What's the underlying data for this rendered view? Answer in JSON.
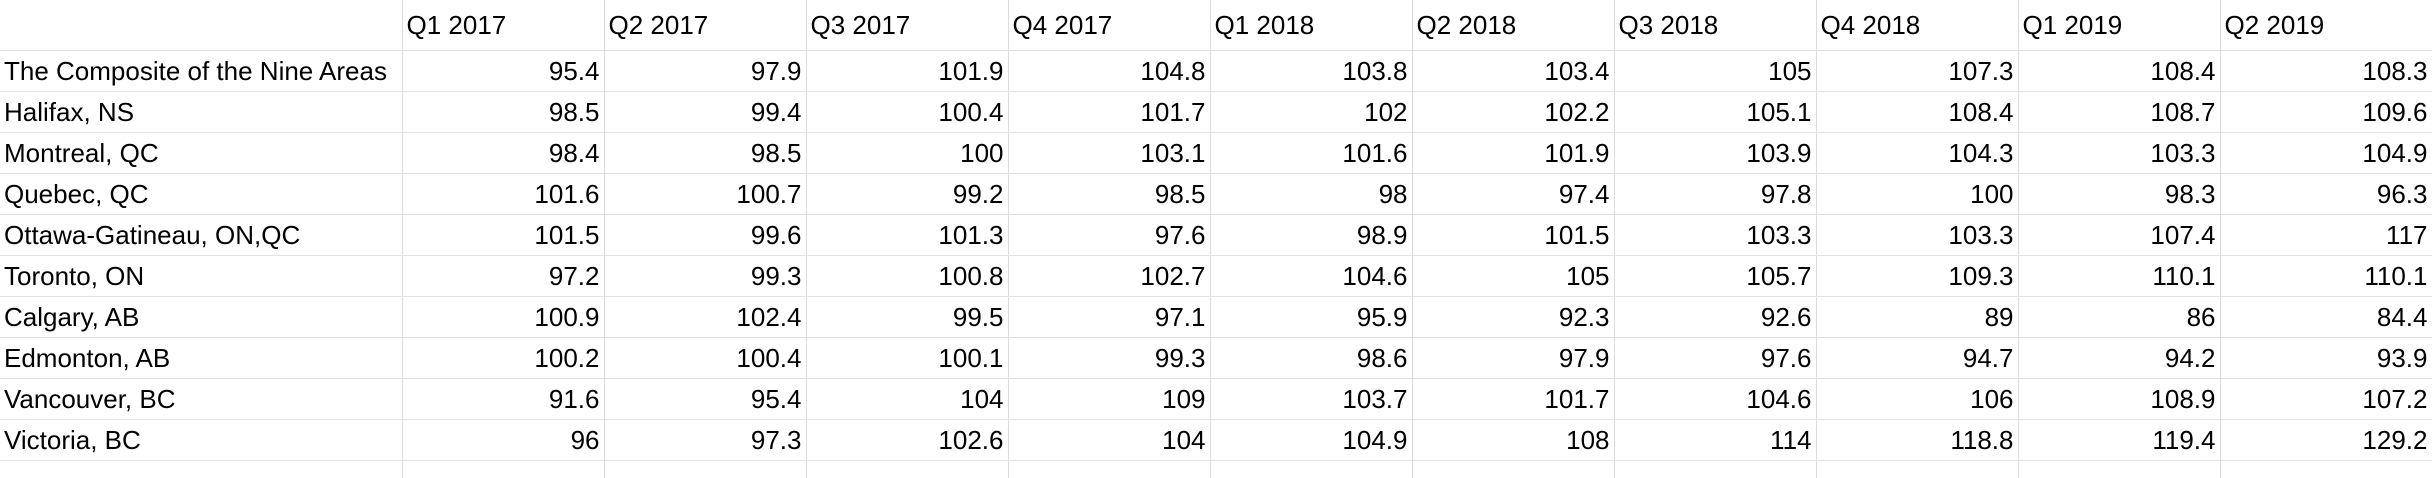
{
  "sheet": {
    "header": [
      "",
      "Q1 2017",
      "Q2 2017",
      "Q3 2017",
      "Q4 2017",
      "Q1 2018",
      "Q2 2018",
      "Q3 2018",
      "Q4 2018",
      "Q1 2019",
      "Q2 2019"
    ],
    "rows": [
      [
        "The Composite of the Nine Areas",
        "95.4",
        "97.9",
        "101.9",
        "104.8",
        "103.8",
        "103.4",
        "105",
        "107.3",
        "108.4",
        "108.3"
      ],
      [
        "Halifax, NS",
        "98.5",
        "99.4",
        "100.4",
        "101.7",
        "102",
        "102.2",
        "105.1",
        "108.4",
        "108.7",
        "109.6"
      ],
      [
        "Montreal, QC",
        "98.4",
        "98.5",
        "100",
        "103.1",
        "101.6",
        "101.9",
        "103.9",
        "104.3",
        "103.3",
        "104.9"
      ],
      [
        "Quebec, QC",
        "101.6",
        "100.7",
        "99.2",
        "98.5",
        "98",
        "97.4",
        "97.8",
        "100",
        "98.3",
        "96.3"
      ],
      [
        "Ottawa-Gatineau, ON,QC",
        "101.5",
        "99.6",
        "101.3",
        "97.6",
        "98.9",
        "101.5",
        "103.3",
        "103.3",
        "107.4",
        "117"
      ],
      [
        "Toronto, ON",
        "97.2",
        "99.3",
        "100.8",
        "102.7",
        "104.6",
        "105",
        "105.7",
        "109.3",
        "110.1",
        "110.1"
      ],
      [
        "Calgary, AB",
        "100.9",
        "102.4",
        "99.5",
        "97.1",
        "95.9",
        "92.3",
        "92.6",
        "89",
        "86",
        "84.4"
      ],
      [
        "Edmonton, AB",
        "100.2",
        "100.4",
        "100.1",
        "99.3",
        "98.6",
        "97.9",
        "97.6",
        "94.7",
        "94.2",
        "93.9"
      ],
      [
        "Vancouver, BC",
        "91.6",
        "95.4",
        "104",
        "109",
        "103.7",
        "101.7",
        "104.6",
        "106",
        "108.9",
        "107.2"
      ],
      [
        "Victoria, BC",
        "96",
        "97.3",
        "102.6",
        "104",
        "104.9",
        "108",
        "114",
        "118.8",
        "119.4",
        "129.2"
      ]
    ]
  }
}
